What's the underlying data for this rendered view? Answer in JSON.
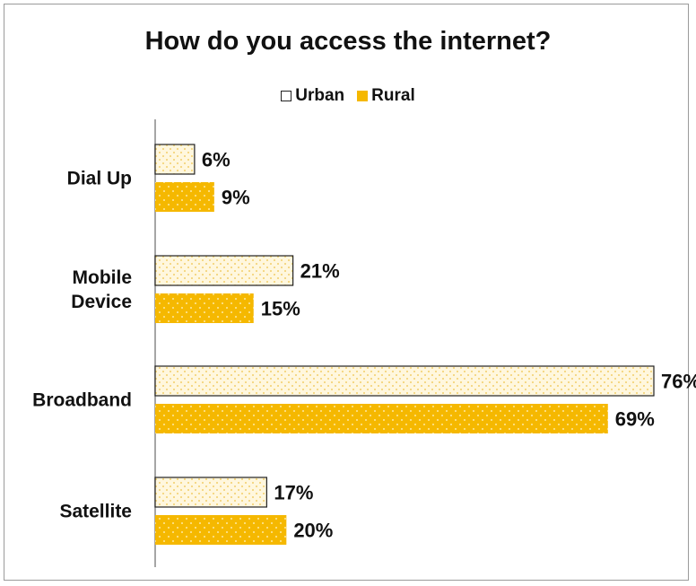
{
  "chart_data": {
    "type": "bar",
    "orientation": "horizontal",
    "title": "How do you access the internet?",
    "categories": [
      "Dial Up",
      "Mobile Device",
      "Broadband",
      "Satellite"
    ],
    "category_lines": [
      [
        "Dial Up"
      ],
      [
        "Mobile",
        "Device"
      ],
      [
        "Broadband"
      ],
      [
        "Satellite"
      ]
    ],
    "series": [
      {
        "name": "Urban",
        "values": [
          6,
          21,
          76,
          17
        ],
        "labels": [
          "6%",
          "21%",
          "76%",
          "17%"
        ],
        "color": "#fff6dc",
        "pattern": "dotted-light",
        "border": "#222222"
      },
      {
        "name": "Rural",
        "values": [
          9,
          15,
          69,
          20
        ],
        "labels": [
          "9%",
          "15%",
          "69%",
          "20%"
        ],
        "color": "#f5b800",
        "pattern": "dotted",
        "border": "none"
      }
    ],
    "xlim": [
      0,
      76
    ],
    "grid": false,
    "legend": "top-center",
    "value_suffix": "%"
  }
}
